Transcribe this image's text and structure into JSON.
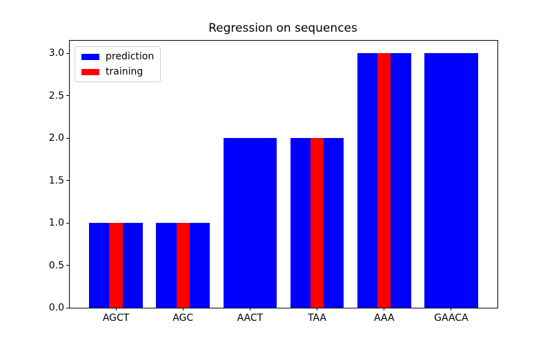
{
  "figure": {
    "background": "#ffffff"
  },
  "chart_data": {
    "type": "bar",
    "title": "Regression on sequences",
    "xlabel": "",
    "ylabel": "",
    "categories": [
      "AGCT",
      "AGC",
      "AACT",
      "TAA",
      "AAA",
      "GAACA"
    ],
    "series": [
      {
        "name": "prediction",
        "color": "#0000ff",
        "bar_width": 0.8,
        "values": [
          1.0,
          1.0,
          2.0,
          2.0,
          3.0,
          3.0
        ]
      },
      {
        "name": "training",
        "color": "#ff0000",
        "bar_width": 0.2,
        "values": [
          1.0,
          1.0,
          null,
          2.0,
          3.0,
          null
        ]
      }
    ],
    "yticks": [
      0.0,
      0.5,
      1.0,
      1.5,
      2.0,
      2.5,
      3.0
    ],
    "ytick_labels": [
      "0.0",
      "0.5",
      "1.0",
      "1.5",
      "2.0",
      "2.5",
      "3.0"
    ],
    "ylim": [
      0,
      3.15
    ],
    "xlim": [
      -0.69,
      5.69
    ],
    "grid": false,
    "legend_position": "upper left",
    "legend": [
      "prediction",
      "training"
    ],
    "colors": {
      "prediction": "#0000ff",
      "training": "#ff0000",
      "spine": "#000000",
      "legend_border": "#cccccc",
      "text": "#000000"
    }
  }
}
